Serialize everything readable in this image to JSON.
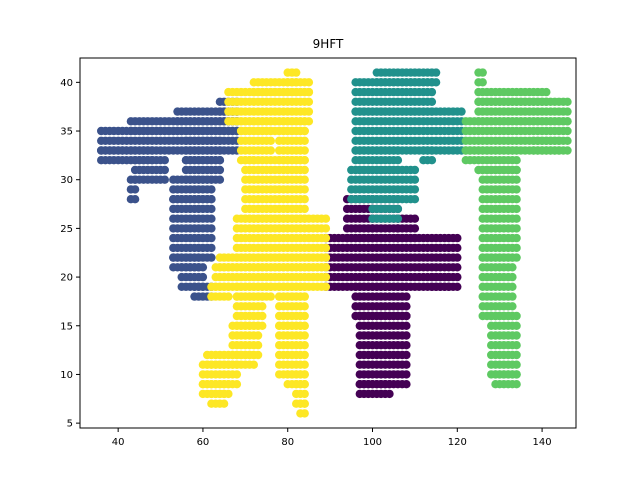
{
  "chart_data": {
    "type": "scatter",
    "title": "9HFT",
    "xlabel": "",
    "ylabel": "",
    "xlim": [
      31,
      148
    ],
    "ylim": [
      4.5,
      42.5
    ],
    "xticks": [
      40,
      60,
      80,
      100,
      120,
      140
    ],
    "yticks": [
      5,
      10,
      15,
      20,
      25,
      30,
      35,
      40
    ],
    "grid": false,
    "series": [
      {
        "color": "#440154",
        "shape": "cross",
        "rects": [
          [
            94,
            24,
            100,
            28
          ],
          [
            100,
            24,
            106,
            27
          ],
          [
            106,
            24,
            110,
            26
          ],
          [
            89,
            19,
            120,
            24
          ],
          [
            114,
            19,
            118,
            20
          ],
          [
            96,
            16,
            108,
            19
          ],
          [
            97,
            9,
            108,
            16
          ],
          [
            97,
            8,
            104,
            9
          ]
        ]
      },
      {
        "color": "#3b528b",
        "shape": "9",
        "rects": [
          [
            64,
            37,
            68,
            38
          ],
          [
            54,
            36,
            68,
            37
          ],
          [
            43,
            35,
            68,
            36
          ],
          [
            36,
            33,
            68,
            35
          ],
          [
            36,
            32,
            48,
            33
          ],
          [
            56,
            32,
            64,
            34
          ],
          [
            44,
            30,
            51,
            32
          ],
          [
            56,
            30,
            64,
            32
          ],
          [
            43,
            28,
            44,
            30
          ],
          [
            53,
            28,
            62,
            30
          ],
          [
            53,
            22,
            62,
            28
          ],
          [
            53,
            21,
            59,
            22
          ],
          [
            55,
            19,
            60,
            21
          ],
          [
            58,
            18,
            62,
            19
          ]
        ]
      },
      {
        "color": "#21918c",
        "shape": "H",
        "rects": [
          [
            101,
            40,
            115,
            41
          ],
          [
            96,
            37,
            114,
            40
          ],
          [
            96,
            33,
            121,
            37
          ],
          [
            96,
            31,
            106,
            33
          ],
          [
            112,
            32,
            114,
            33
          ],
          [
            95,
            28,
            110,
            31
          ],
          [
            100,
            26,
            106,
            28
          ]
        ]
      },
      {
        "color": "#5ec962",
        "shape": "T",
        "rects": [
          [
            125,
            40,
            126,
            41
          ],
          [
            125,
            38,
            141,
            39
          ],
          [
            125,
            36,
            146,
            38
          ],
          [
            122,
            33,
            146,
            36
          ],
          [
            122,
            32,
            124,
            33
          ],
          [
            125,
            31,
            134,
            33
          ],
          [
            138,
            33,
            144,
            34
          ],
          [
            126,
            22,
            134,
            31
          ],
          [
            126,
            16,
            133,
            22
          ],
          [
            128,
            10,
            134,
            16
          ],
          [
            129,
            9,
            134,
            10
          ]
        ]
      },
      {
        "color": "#fde725",
        "shape": "F",
        "rects": [
          [
            80,
            40,
            82,
            41
          ],
          [
            72,
            39,
            85,
            40
          ],
          [
            66,
            36,
            85,
            39
          ],
          [
            69,
            35,
            84,
            36
          ],
          [
            69,
            32,
            72,
            35
          ],
          [
            73,
            33,
            76,
            35
          ],
          [
            78,
            32,
            84,
            35
          ],
          [
            70,
            26,
            84,
            32
          ],
          [
            68,
            22,
            89,
            26
          ],
          [
            64,
            21,
            89,
            22
          ],
          [
            63,
            19,
            89,
            21
          ],
          [
            62,
            18,
            66,
            19
          ],
          [
            68,
            18,
            76,
            19
          ],
          [
            78,
            18,
            84,
            19
          ],
          [
            68,
            15,
            74,
            18
          ],
          [
            78,
            15,
            84,
            18
          ],
          [
            67,
            12,
            73,
            15
          ],
          [
            78,
            10,
            84,
            15
          ],
          [
            61,
            11,
            72,
            12
          ],
          [
            60,
            9,
            68,
            11
          ],
          [
            80,
            9,
            84,
            10
          ],
          [
            60,
            8,
            66,
            9
          ],
          [
            62,
            7,
            65,
            8
          ],
          [
            82,
            7,
            84,
            9
          ],
          [
            83,
            6,
            84,
            7
          ]
        ]
      }
    ]
  }
}
